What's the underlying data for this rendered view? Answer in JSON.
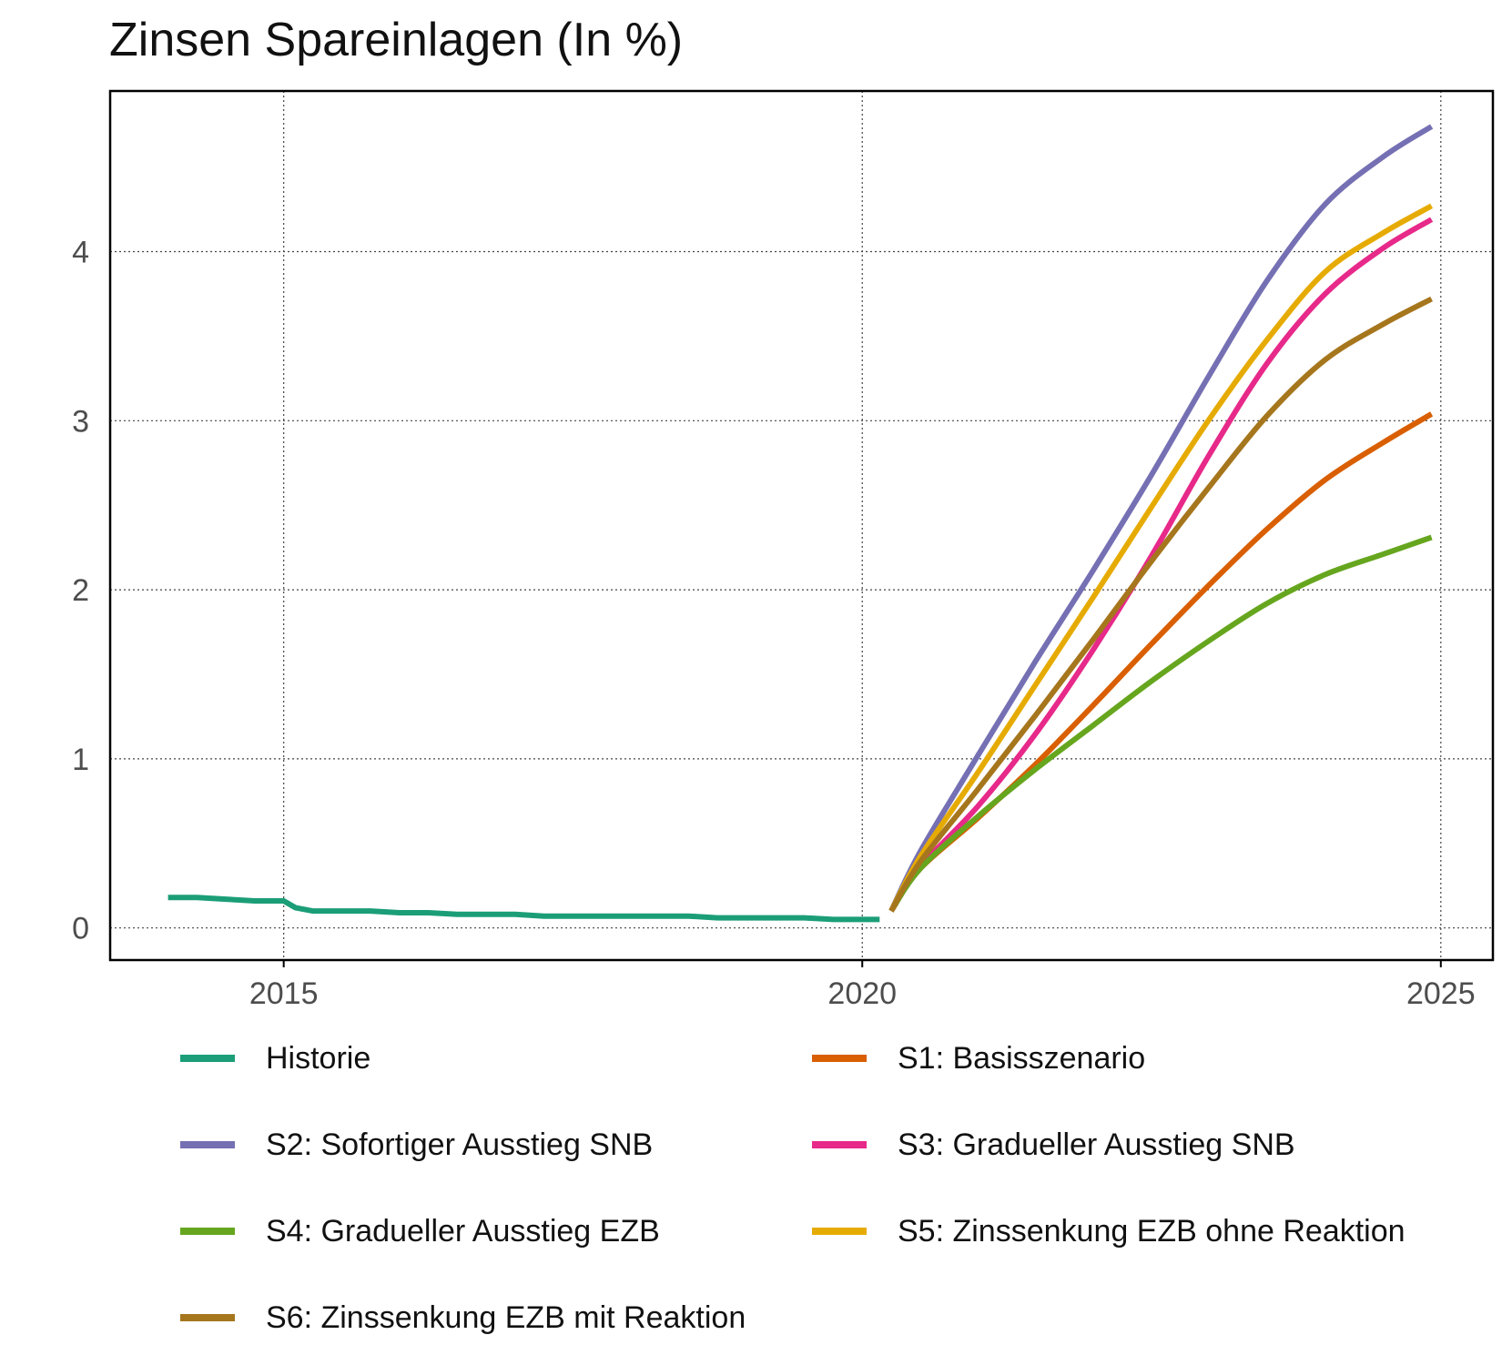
{
  "chart_data": {
    "type": "line",
    "title": "Zinsen Spareinlagen (In %)",
    "xlabel": "",
    "ylabel": "",
    "xlim": [
      2013.5,
      2025.45
    ],
    "ylim": [
      -0.19,
      4.95
    ],
    "x_ticks": [
      {
        "value": 2015,
        "label": "2015"
      },
      {
        "value": 2020,
        "label": "2020"
      },
      {
        "value": 2025,
        "label": "2025"
      }
    ],
    "y_ticks": [
      {
        "value": 0,
        "label": "0"
      },
      {
        "value": 1,
        "label": "1"
      },
      {
        "value": 2,
        "label": "2"
      },
      {
        "value": 3,
        "label": "3"
      },
      {
        "value": 4,
        "label": "4"
      }
    ],
    "grid": true,
    "legend_position": "bottom",
    "series": [
      {
        "name": "Historie",
        "color": "#1B9E77",
        "x": [
          2014.0,
          2014.25,
          2014.5,
          2014.75,
          2015.0,
          2015.1,
          2015.25,
          2015.5,
          2015.75,
          2016.0,
          2016.25,
          2016.5,
          2016.75,
          2017.0,
          2017.25,
          2017.5,
          2017.75,
          2018.0,
          2018.25,
          2018.5,
          2018.75,
          2019.0,
          2019.25,
          2019.5,
          2019.75,
          2020.0,
          2020.15
        ],
        "y": [
          0.18,
          0.18,
          0.17,
          0.16,
          0.16,
          0.12,
          0.1,
          0.1,
          0.1,
          0.09,
          0.09,
          0.08,
          0.08,
          0.08,
          0.07,
          0.07,
          0.07,
          0.07,
          0.07,
          0.07,
          0.06,
          0.06,
          0.06,
          0.06,
          0.05,
          0.05,
          0.05
        ]
      },
      {
        "name": "S1: Basisszenario",
        "color": "#D95F02",
        "x": [
          2020.25,
          2020.5,
          2021.0,
          2021.5,
          2022.0,
          2022.5,
          2023.0,
          2023.5,
          2024.0,
          2024.5,
          2024.92
        ],
        "y": [
          0.1,
          0.35,
          0.65,
          0.97,
          1.32,
          1.68,
          2.03,
          2.36,
          2.65,
          2.87,
          3.04
        ]
      },
      {
        "name": "S2: Sofortiger Ausstieg SNB",
        "color": "#7570B3",
        "x": [
          2020.25,
          2020.5,
          2021.0,
          2021.5,
          2022.0,
          2022.5,
          2023.0,
          2023.5,
          2024.0,
          2024.5,
          2024.92
        ],
        "y": [
          0.1,
          0.45,
          1.02,
          1.58,
          2.12,
          2.68,
          3.27,
          3.83,
          4.28,
          4.56,
          4.74
        ]
      },
      {
        "name": "S3: Gradueller Ausstieg SNB",
        "color": "#E7298A",
        "x": [
          2020.25,
          2020.5,
          2021.0,
          2021.5,
          2022.0,
          2022.5,
          2023.0,
          2023.5,
          2024.0,
          2024.5,
          2024.92
        ],
        "y": [
          0.1,
          0.36,
          0.72,
          1.15,
          1.65,
          2.2,
          2.8,
          3.34,
          3.75,
          4.02,
          4.19
        ]
      },
      {
        "name": "S4: Gradueller Ausstieg EZB",
        "color": "#66A61E",
        "x": [
          2020.25,
          2020.5,
          2021.0,
          2021.5,
          2022.0,
          2022.5,
          2023.0,
          2023.5,
          2024.0,
          2024.5,
          2024.92
        ],
        "y": [
          0.1,
          0.35,
          0.66,
          0.94,
          1.2,
          1.46,
          1.7,
          1.92,
          2.09,
          2.21,
          2.31
        ]
      },
      {
        "name": "S5: Zinssenkung EZB ohne Reaktion",
        "color": "#E6AB02",
        "x": [
          2020.25,
          2020.5,
          2021.0,
          2021.5,
          2022.0,
          2022.5,
          2023.0,
          2023.5,
          2024.0,
          2024.5,
          2024.92
        ],
        "y": [
          0.1,
          0.42,
          0.92,
          1.44,
          1.96,
          2.49,
          3.01,
          3.48,
          3.88,
          4.11,
          4.27
        ]
      },
      {
        "name": "S6: Zinssenkung EZB mit Reaktion",
        "color": "#A6761D",
        "x": [
          2020.25,
          2020.5,
          2021.0,
          2021.5,
          2022.0,
          2022.5,
          2023.0,
          2023.5,
          2024.0,
          2024.5,
          2024.92
        ],
        "y": [
          0.1,
          0.39,
          0.82,
          1.26,
          1.71,
          2.17,
          2.61,
          3.03,
          3.36,
          3.57,
          3.72
        ]
      }
    ]
  }
}
